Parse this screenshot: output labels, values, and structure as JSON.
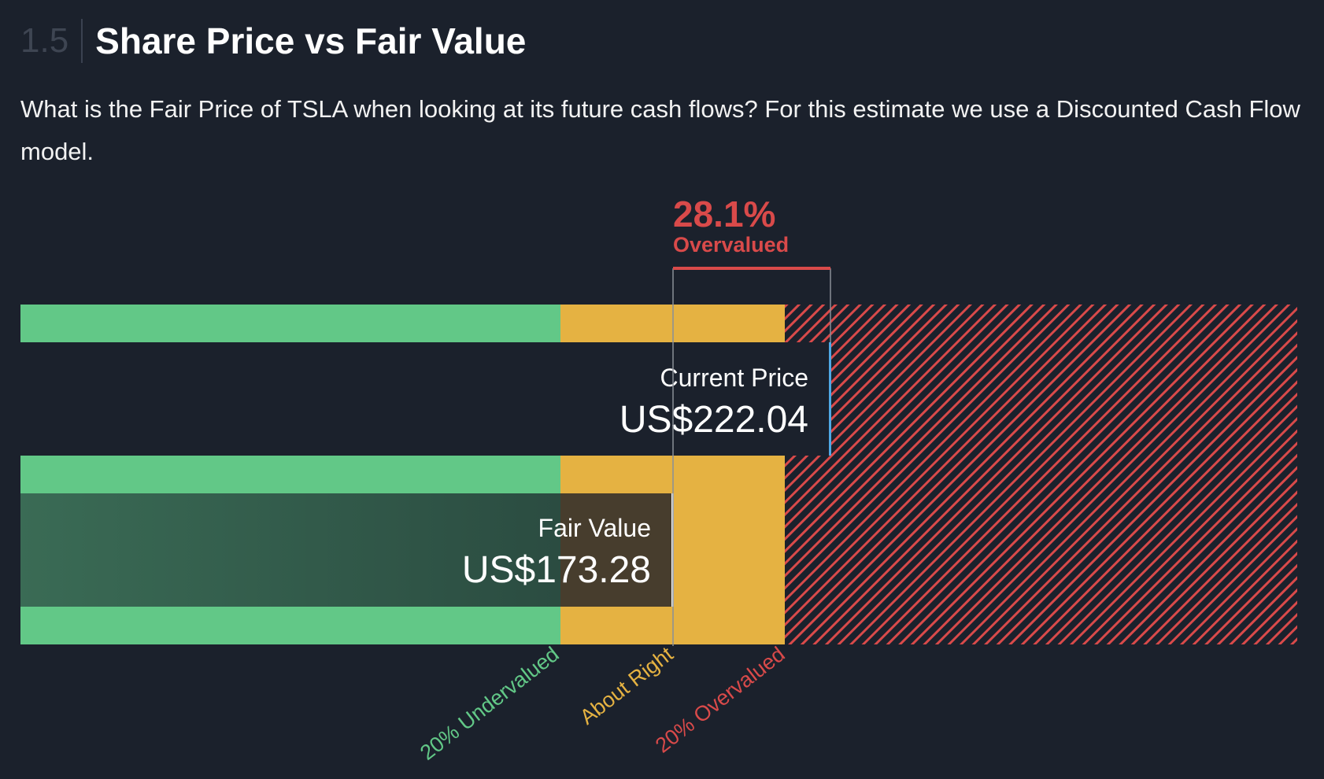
{
  "header": {
    "section_number": "1.5",
    "title": "Share Price vs Fair Value"
  },
  "description": "What is the Fair Price of TSLA when looking at its future cash flows? For this estimate we use a Discounted Cash Flow model.",
  "chart_data": {
    "type": "bar",
    "ticker": "TSLA",
    "current_price": {
      "label": "Current Price",
      "display": "US$222.04",
      "value": 222.04
    },
    "fair_value": {
      "label": "Fair Value",
      "display": "US$173.28",
      "value": 173.28
    },
    "difference": {
      "percent": "28.1%",
      "label": "Overvalued"
    },
    "zones": [
      {
        "label": "20% Undervalued",
        "color": "#62c887"
      },
      {
        "label": "About Right",
        "color": "#e5b242"
      },
      {
        "label": "20% Overvalued",
        "color": "#d94a4a"
      }
    ]
  },
  "colors": {
    "background": "#1b212c",
    "green": "#62c887",
    "amber": "#e5b242",
    "red": "#d94a4a",
    "blue": "#4fa9e6",
    "fair_value_overlay": "#2f5446"
  }
}
